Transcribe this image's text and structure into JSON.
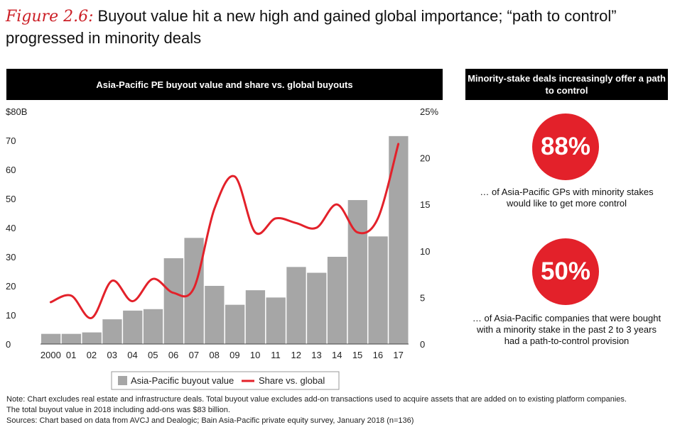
{
  "figure": {
    "label": "Figure 2.6:",
    "title": "Buyout value hit a new high and gained global importance; “path to control” progressed in minority deals"
  },
  "left_panel": {
    "header": "Asia-Pacific PE buyout value and share vs. global buyouts"
  },
  "right_panel": {
    "header": "Minority-stake deals increasingly offer a path to control",
    "stats": [
      {
        "value": "88%",
        "caption": "… of Asia-Pacific GPs with minority stakes would like to get more control"
      },
      {
        "value": "50%",
        "caption": "… of Asia-Pacific companies that were bought with a minority stake in the past 2 to 3 years had a path-to-control provision"
      }
    ]
  },
  "chart_data": {
    "type": "bar",
    "categories": [
      "2000",
      "01",
      "02",
      "03",
      "04",
      "05",
      "06",
      "07",
      "08",
      "09",
      "10",
      "11",
      "12",
      "13",
      "14",
      "15",
      "16",
      "17"
    ],
    "series": [
      {
        "name": "Asia-Pacific buyout value",
        "type": "bar",
        "axis": "left",
        "values": [
          3.5,
          3.5,
          4,
          8.5,
          11.5,
          12,
          29.5,
          36.5,
          20,
          13.5,
          18.5,
          16,
          26.5,
          24.5,
          30,
          49.5,
          37,
          71.5
        ]
      },
      {
        "name": "Share vs. global",
        "type": "line",
        "axis": "right",
        "values": [
          4.5,
          5.2,
          2.8,
          6.8,
          4.6,
          7.0,
          5.5,
          6.0,
          14.5,
          18.0,
          12.0,
          13.5,
          13.0,
          12.5,
          15.0,
          12.0,
          13.5,
          21.5
        ]
      }
    ],
    "y_left": {
      "ticks": [
        "0",
        "10",
        "20",
        "30",
        "40",
        "50",
        "60",
        "70",
        "$80B"
      ],
      "ylim": [
        0,
        80
      ]
    },
    "y_right": {
      "ticks": [
        "0",
        "5",
        "10",
        "15",
        "20",
        "25%"
      ],
      "ylim": [
        0,
        25
      ]
    },
    "legend": [
      "Asia-Pacific buyout value",
      "Share vs. global"
    ],
    "legend_position": "bottom-center",
    "colors": {
      "bar": "#a6a6a6",
      "line": "#e3212a"
    }
  },
  "notes": {
    "line1": "Note: Chart excludes real estate and infrastructure deals. Total buyout value excludes add-on transactions used to acquire assets that are added on to existing platform companies.",
    "line2": "The total buyout value in 2018 including add-ons was $83 billion.",
    "line3": "Sources: Chart based on data from AVCJ and Dealogic; Bain Asia-Pacific private equity survey, January 2018 (n=136)"
  }
}
